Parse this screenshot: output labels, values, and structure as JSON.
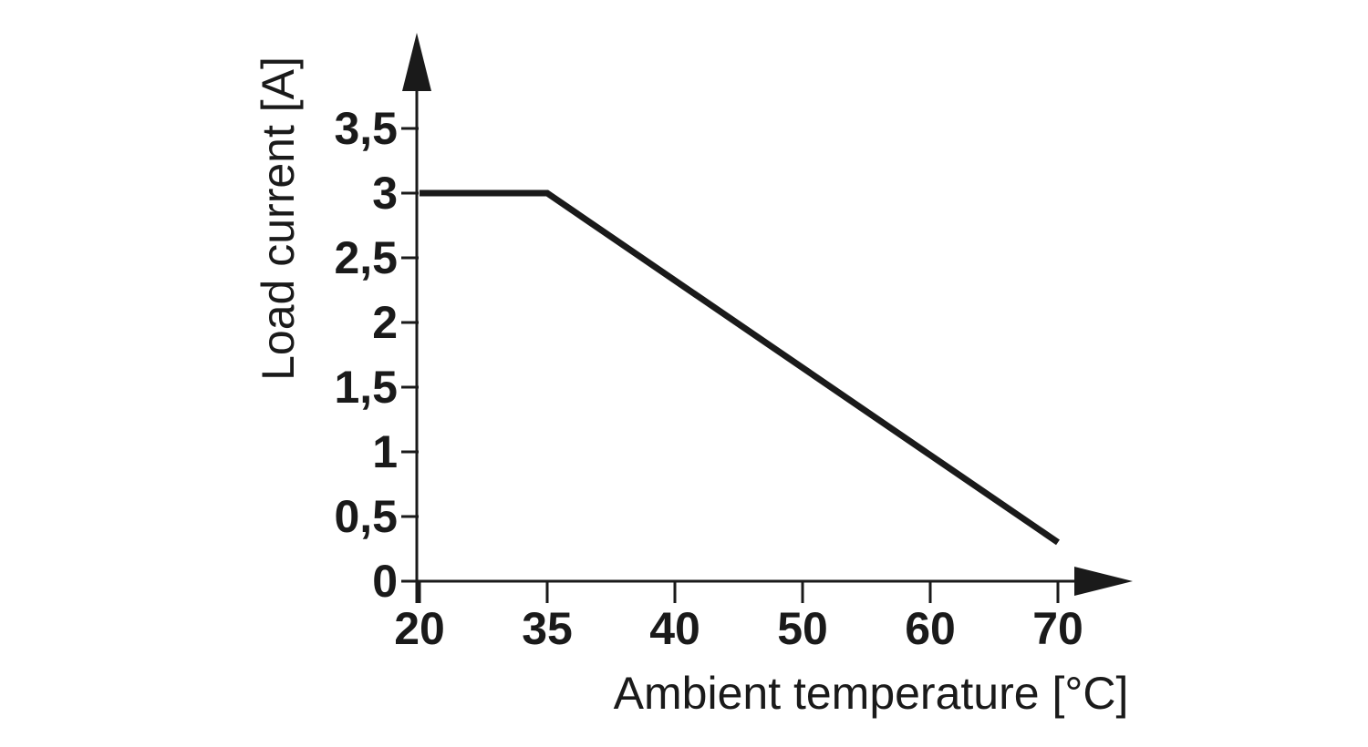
{
  "chart_data": {
    "type": "line",
    "title": "",
    "xlabel": "Ambient temperature [°C]",
    "ylabel": "Load current [A]",
    "x_tick_labels": [
      "20",
      "35",
      "40",
      "50",
      "60",
      "70"
    ],
    "x_tick_values": [
      20,
      35,
      40,
      50,
      60,
      70
    ],
    "y_tick_labels": [
      "0",
      "0,5",
      "1",
      "1,5",
      "2",
      "2,5",
      "3",
      "3,5"
    ],
    "y_tick_values": [
      0,
      0.5,
      1,
      1.5,
      2,
      2.5,
      3,
      3.5
    ],
    "xlim": [
      20,
      70
    ],
    "ylim": [
      0,
      3.5
    ],
    "grid": false,
    "legend": "none",
    "x_scale_note": "ticks equally spaced; interval 20-35 same width as 10-degree intervals",
    "line_color": "#1a1a1a",
    "series": [
      {
        "name": "load-current-derating-curve",
        "points": [
          {
            "x": 20,
            "y": 3
          },
          {
            "x": 35,
            "y": 3
          },
          {
            "x": 70,
            "y": 0.3
          }
        ]
      }
    ]
  }
}
